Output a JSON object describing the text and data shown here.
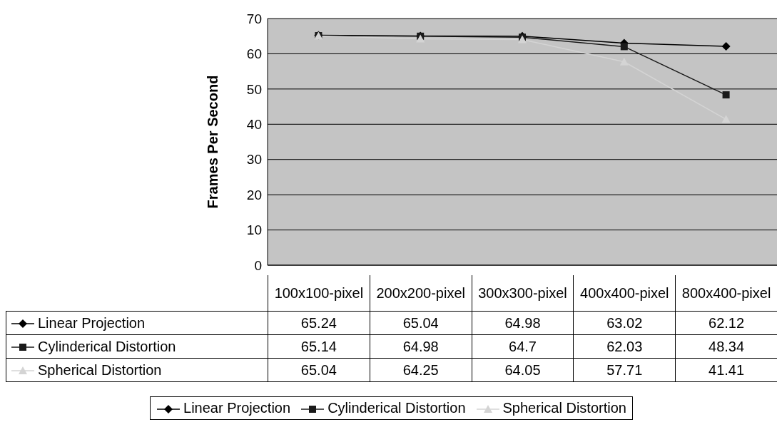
{
  "chart_data": {
    "type": "line",
    "ylabel": "Frames Per Second",
    "categories": [
      "100x100-pixel",
      "200x200-pixel",
      "300x300-pixel",
      "400x400-pixel",
      "800x400-pixel"
    ],
    "series": [
      {
        "name": "Linear Projection",
        "color": "#000000",
        "marker": "diamond",
        "values": [
          65.24,
          65.04,
          64.98,
          63.02,
          62.12
        ]
      },
      {
        "name": "Cylinderical Distortion",
        "color": "#1a1a1a",
        "marker": "square",
        "values": [
          65.14,
          64.98,
          64.7,
          62.03,
          48.34
        ]
      },
      {
        "name": "Spherical Distortion",
        "color": "#d4d4d4",
        "marker": "triangle",
        "values": [
          65.04,
          64.25,
          64.05,
          57.71,
          41.41
        ]
      }
    ],
    "ylim": [
      0,
      70
    ],
    "yticks": [
      0,
      10,
      20,
      30,
      40,
      50,
      60,
      70
    ],
    "grid": "y",
    "legend": "bottom",
    "data_labels": true
  }
}
